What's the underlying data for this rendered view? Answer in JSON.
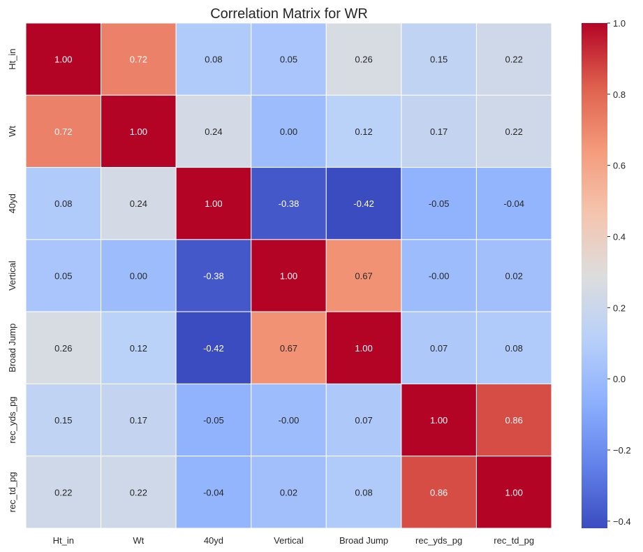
{
  "chart_data": {
    "type": "heatmap",
    "title": "Correlation Matrix for WR",
    "xlabel": "",
    "ylabel": "",
    "labels": [
      "Ht_in",
      "Wt",
      "40yd",
      "Vertical",
      "Broad Jump",
      "rec_yds_pg",
      "rec_td_pg"
    ],
    "matrix": [
      [
        1.0,
        0.72,
        0.08,
        0.05,
        0.26,
        0.15,
        0.22
      ],
      [
        0.72,
        1.0,
        0.24,
        0.0,
        0.12,
        0.17,
        0.22
      ],
      [
        0.08,
        0.24,
        1.0,
        -0.38,
        -0.42,
        -0.05,
        -0.04
      ],
      [
        0.05,
        0.0,
        -0.38,
        1.0,
        0.67,
        -0.0,
        0.02
      ],
      [
        0.26,
        0.12,
        -0.42,
        0.67,
        1.0,
        0.07,
        0.08
      ],
      [
        0.15,
        0.17,
        -0.05,
        -0.0,
        0.07,
        1.0,
        0.86
      ],
      [
        0.22,
        0.22,
        -0.04,
        0.02,
        0.08,
        0.86,
        1.0
      ]
    ],
    "cell_text": [
      [
        "1.00",
        "0.72",
        "0.08",
        "0.05",
        "0.26",
        "0.15",
        "0.22"
      ],
      [
        "0.72",
        "1.00",
        "0.24",
        "0.00",
        "0.12",
        "0.17",
        "0.22"
      ],
      [
        "0.08",
        "0.24",
        "1.00",
        "-0.38",
        "-0.42",
        "-0.05",
        "-0.04"
      ],
      [
        "0.05",
        "0.00",
        "-0.38",
        "1.00",
        "0.67",
        "-0.00",
        "0.02"
      ],
      [
        "0.26",
        "0.12",
        "-0.42",
        "0.67",
        "1.00",
        "0.07",
        "0.08"
      ],
      [
        "0.15",
        "0.17",
        "-0.05",
        "-0.00",
        "0.07",
        "1.00",
        "0.86"
      ],
      [
        "0.22",
        "0.22",
        "-0.04",
        "0.02",
        "0.08",
        "0.86",
        "1.00"
      ]
    ],
    "colormap": "coolwarm",
    "colorbar": {
      "range": [
        -0.42,
        1.0
      ],
      "ticks": [
        1.0,
        0.8,
        0.6,
        0.4,
        0.2,
        0.0,
        -0.2,
        -0.4
      ],
      "tick_labels": [
        "1.0",
        "0.8",
        "0.6",
        "0.4",
        "0.2",
        "0.0",
        "−0.2",
        "−0.4"
      ],
      "placement": "right"
    },
    "grid": true
  },
  "colors": {
    "cell_border": "#ffffff",
    "text": "#262626",
    "annotation_light": "#ffffff",
    "annotation_dark": "#262626"
  }
}
